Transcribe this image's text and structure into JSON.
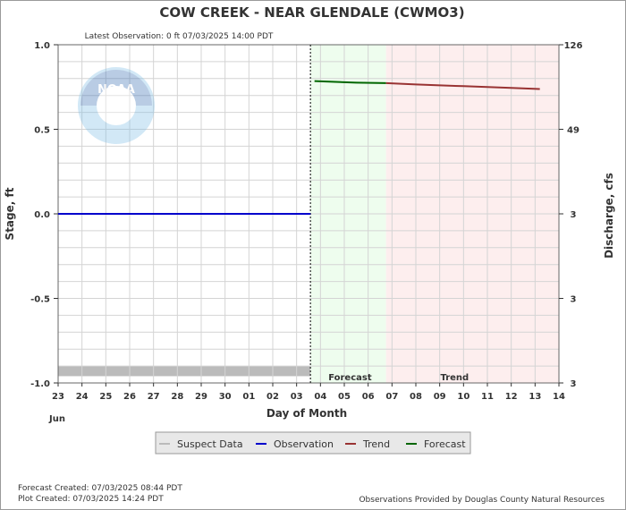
{
  "chart_data": {
    "type": "line",
    "title": "COW CREEK - NEAR GLENDALE  (CWMO3)",
    "latest_observation": "Latest Observation: 0 ft 07/03/2025 14:00 PDT",
    "ylabel": "Stage, ft",
    "y2label": "Discharge, cfs",
    "xlabel": "Day of Month",
    "month_label": "Jun",
    "ylim": [
      -1.0,
      1.0
    ],
    "yticks": [
      -1.0,
      -0.5,
      0.0,
      0.5,
      1.0
    ],
    "ytick_labels": [
      "-1.0",
      "-0.5",
      "0.0",
      "0.5",
      "1.0"
    ],
    "y2tick_labels": [
      "3",
      "3",
      "3",
      "49",
      "126"
    ],
    "x_range_days": [
      0,
      21
    ],
    "x_tick_labels": [
      "23",
      "24",
      "25",
      "26",
      "27",
      "28",
      "29",
      "30",
      "01",
      "02",
      "03",
      "04",
      "05",
      "06",
      "07",
      "08",
      "09",
      "10",
      "11",
      "12",
      "13",
      "14"
    ],
    "region_labels": {
      "forecast": "Forecast",
      "trend": "Trend"
    },
    "regions": {
      "suspect_band": {
        "x": [
          0,
          10.58
        ],
        "y": [
          -0.96,
          -0.9
        ]
      },
      "forecast_shade": {
        "x": [
          10.58,
          13.75
        ]
      },
      "trend_shade": {
        "x": [
          13.75,
          21
        ]
      },
      "latest_obs_x": 10.58
    },
    "series": [
      {
        "name": "Observation",
        "color": "#0000cc",
        "points": [
          [
            0,
            0.0
          ],
          [
            10.58,
            0.0
          ]
        ]
      },
      {
        "name": "Forecast",
        "color": "#006600",
        "points": [
          [
            10.75,
            0.785
          ],
          [
            11.5,
            0.781
          ],
          [
            12.5,
            0.776
          ],
          [
            13.75,
            0.773
          ]
        ]
      },
      {
        "name": "Trend",
        "color": "#993333",
        "points": [
          [
            13.75,
            0.773
          ],
          [
            15,
            0.765
          ],
          [
            16,
            0.76
          ],
          [
            17,
            0.755
          ],
          [
            18,
            0.75
          ],
          [
            19,
            0.745
          ],
          [
            20.2,
            0.738
          ]
        ]
      }
    ],
    "legend": [
      {
        "name": "Suspect Data",
        "color": "#bbbbbb"
      },
      {
        "name": "Observation",
        "color": "#0000cc"
      },
      {
        "name": "Trend",
        "color": "#993333"
      },
      {
        "name": "Forecast",
        "color": "#006600"
      }
    ],
    "colors": {
      "forecast_shade": "#eefdee",
      "trend_shade": "#fdeeee",
      "suspect": "#bbbbbb",
      "grid": "#d4d4d4"
    }
  },
  "footer": {
    "forecast_created": "Forecast Created: 07/03/2025 08:44 PDT",
    "plot_created": "Plot Created: 07/03/2025 14:24 PDT",
    "provider": "Observations Provided by Douglas County Natural Resources"
  },
  "logo": {
    "text": "NOAA"
  }
}
